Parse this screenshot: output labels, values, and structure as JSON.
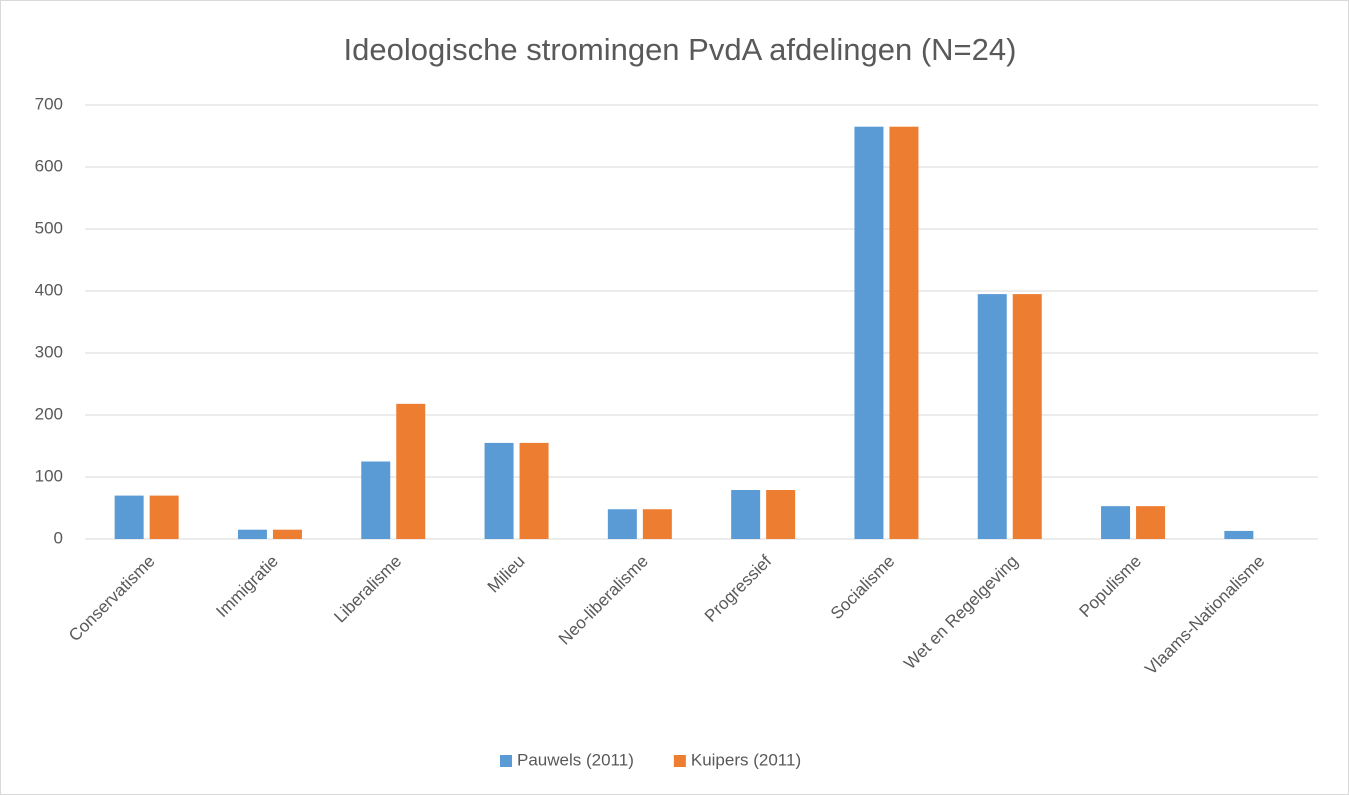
{
  "chart_data": {
    "type": "bar",
    "title": "Ideologische stromingen PvdA afdelingen (N=24)",
    "categories": [
      "Conservatisme",
      "Immigratie",
      "Liberalisme",
      "Milieu",
      "Neo-liberalisme",
      "Progressief",
      "Socialisme",
      "Wet en Regelgeving",
      "Populisme",
      "Vlaams-Nationalisme"
    ],
    "series": [
      {
        "name": "Pauwels (2011)",
        "color": "#5b9bd5",
        "values": [
          70,
          15,
          125,
          155,
          48,
          79,
          665,
          395,
          53,
          13
        ]
      },
      {
        "name": "Kuipers (2011)",
        "color": "#ed7d31",
        "values": [
          70,
          15,
          218,
          155,
          48,
          79,
          665,
          395,
          53,
          0
        ]
      }
    ],
    "ylim": [
      0,
      700
    ],
    "yticks": [
      0,
      100,
      200,
      300,
      400,
      500,
      600,
      700
    ],
    "grid": true,
    "legend": "bottom"
  }
}
